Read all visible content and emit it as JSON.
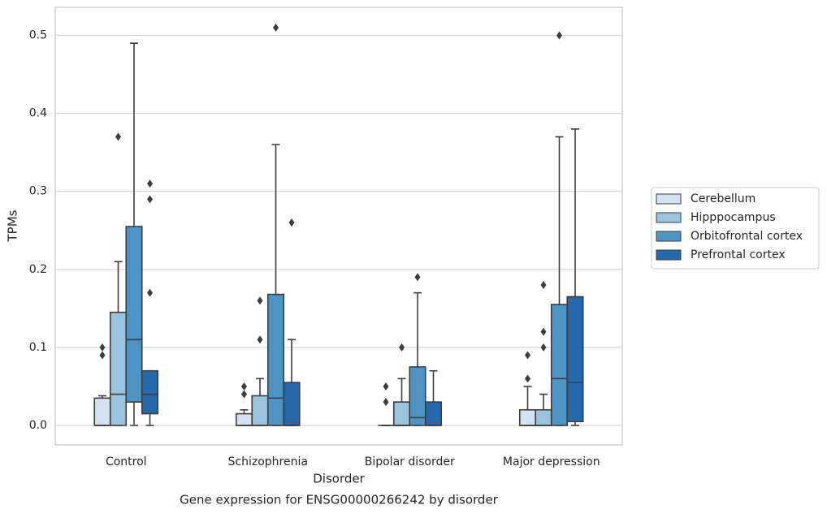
{
  "chart_data": {
    "type": "box",
    "title": "Gene expression for ENSG00000266242 by disorder",
    "x_label": "Disorder",
    "y_label": "TPMs",
    "categories": [
      "Control",
      "Schizophrenia",
      "Bipolar disorder",
      "Major depression"
    ],
    "ylim": [
      -0.025,
      0.536
    ],
    "yticks": [
      {
        "value": 0,
        "label": "0.0"
      },
      0.1,
      0.2,
      0.3,
      0.4,
      0.5
    ],
    "grid": true,
    "legend": "right",
    "series": [
      {
        "name": "Cerebellum",
        "color": "#d3e3f1",
        "min": [
          0,
          0,
          0,
          0
        ],
        "q1": [
          0,
          0,
          0,
          0
        ],
        "median": [
          0,
          0,
          0,
          0
        ],
        "q3": [
          0.035,
          0.015,
          0,
          0.02
        ],
        "max": [
          0.038,
          0.02,
          0,
          0.05
        ],
        "outliers": [
          [
            0.09,
            0.1
          ],
          [
            0.04,
            0.05
          ],
          [
            0.03,
            0.05
          ],
          [
            0.06,
            0.09
          ]
        ]
      },
      {
        "name": "Hipppocampus",
        "color": "#9ac4dd",
        "min": [
          0,
          0,
          0,
          0
        ],
        "q1": [
          0,
          0,
          0,
          0
        ],
        "median": [
          0.04,
          0,
          0,
          0
        ],
        "q3": [
          0.145,
          0.038,
          0.03,
          0.02
        ],
        "max": [
          0.21,
          0.06,
          0.06,
          0.04
        ],
        "outliers": [
          [
            0.37
          ],
          [
            0.11,
            0.16
          ],
          [
            0.1
          ],
          [
            0.1,
            0.12,
            0.18
          ]
        ]
      },
      {
        "name": "Orbitofrontal cortex",
        "color": "#4d93c3",
        "min": [
          0,
          0,
          0,
          0
        ],
        "q1": [
          0.03,
          0,
          0,
          0
        ],
        "median": [
          0.11,
          0.035,
          0.01,
          0.06
        ],
        "q3": [
          0.255,
          0.168,
          0.075,
          0.155
        ],
        "max": [
          0.49,
          0.36,
          0.17,
          0.37
        ],
        "outliers": [
          [],
          [
            0.51
          ],
          [
            0.19
          ],
          [
            0.5
          ]
        ]
      },
      {
        "name": "Prefrontal cortex",
        "color": "#2469ab",
        "min": [
          0,
          0,
          0,
          0
        ],
        "q1": [
          0.015,
          0,
          0,
          0.005
        ],
        "median": [
          0.04,
          0,
          0,
          0.055
        ],
        "q3": [
          0.07,
          0.055,
          0.03,
          0.165
        ],
        "max": [
          0.07,
          0.11,
          0.07,
          0.38
        ],
        "outliers": [
          [
            0.17,
            0.29,
            0.31
          ],
          [
            0.26
          ],
          [],
          []
        ]
      }
    ]
  }
}
